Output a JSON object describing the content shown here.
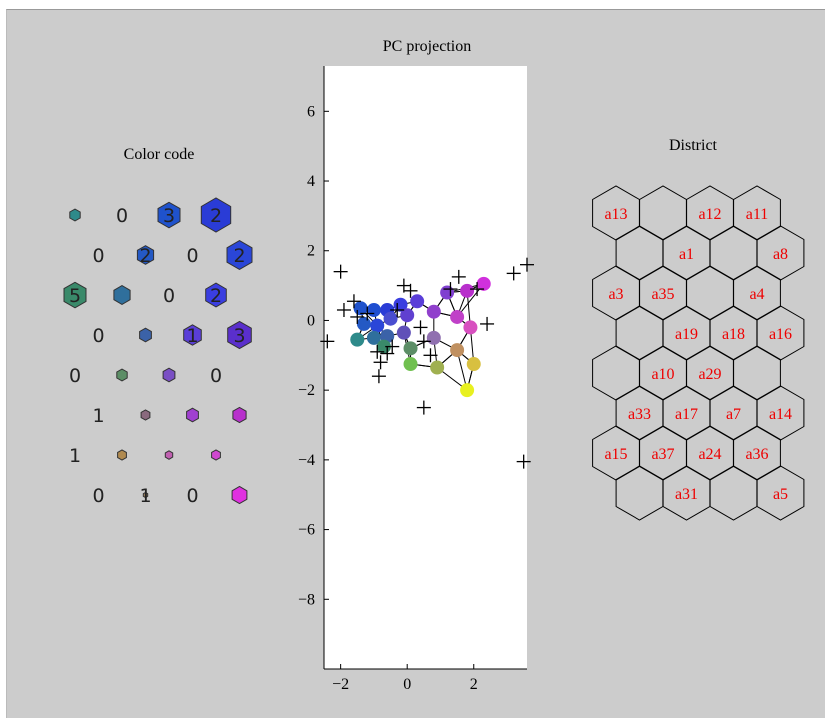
{
  "chart_data": [
    {
      "panel": "color-code",
      "type": "hexagon-grid",
      "title": "Color code",
      "rows": [
        [
          {
            "label": "",
            "color": "#2e8a8a",
            "size": 0.35
          },
          {
            "label": "0",
            "color": null,
            "size": 0
          },
          {
            "label": "3",
            "color": "#1f52cc",
            "size": 0.75
          },
          {
            "label": "2",
            "color": "#2a3cd6",
            "size": 1.0
          }
        ],
        [
          {
            "label": "0",
            "color": null,
            "size": 0
          },
          {
            "label": "2",
            "color": "#2459c4",
            "size": 0.55
          },
          {
            "label": "0",
            "color": null,
            "size": 0
          },
          {
            "label": "2",
            "color": "#2a46d8",
            "size": 0.85
          }
        ],
        [
          {
            "label": "5",
            "color": "#3a8a6a",
            "size": 0.75
          },
          {
            "label": "",
            "color": "#2f6f9c",
            "size": 0.55
          },
          {
            "label": "0",
            "color": null,
            "size": 0
          },
          {
            "label": "2",
            "color": "#3a3ee0",
            "size": 0.7
          }
        ],
        [
          {
            "label": "0",
            "color": null,
            "size": 0
          },
          {
            "label": "",
            "color": "#3b62a8",
            "size": 0.4
          },
          {
            "label": "1",
            "color": "#5a3ed8",
            "size": 0.6
          },
          {
            "label": "3",
            "color": "#5a2fcc",
            "size": 0.8
          }
        ],
        [
          {
            "label": "0",
            "color": null,
            "size": 0
          },
          {
            "label": "",
            "color": "#5c8e66",
            "size": 0.35
          },
          {
            "label": "",
            "color": "#7a4fc4",
            "size": 0.4
          },
          {
            "label": "0",
            "color": null,
            "size": 0
          }
        ],
        [
          {
            "label": "1",
            "color": null,
            "size": 0
          },
          {
            "label": "",
            "color": "#8a6a7e",
            "size": 0.3
          },
          {
            "label": "",
            "color": "#a040d0",
            "size": 0.4
          },
          {
            "label": "",
            "color": "#b830cc",
            "size": 0.45
          }
        ],
        [
          {
            "label": "1",
            "color": null,
            "size": 0
          },
          {
            "label": "",
            "color": "#b08a50",
            "size": 0.3
          },
          {
            "label": "",
            "color": "#c060b0",
            "size": 0.25
          },
          {
            "label": "",
            "color": "#d048d0",
            "size": 0.3
          }
        ],
        [
          {
            "label": "0",
            "color": null,
            "size": 0
          },
          {
            "label": "1",
            "color": "#9a8060",
            "size": 0.15
          },
          {
            "label": "0",
            "color": null,
            "size": 0
          },
          {
            "label": "",
            "color": "#e030e0",
            "size": 0.5
          }
        ]
      ]
    },
    {
      "panel": "pc-projection",
      "type": "scatter",
      "title": "PC projection",
      "xlabel": "",
      "ylabel": "",
      "xlim": [
        -2.5,
        3.6
      ],
      "ylim": [
        -10,
        7.3
      ],
      "xticks": [
        -2,
        0,
        2
      ],
      "xtick_labels": [
        "−2",
        "0",
        "2"
      ],
      "yticks": [
        6,
        4,
        2,
        0,
        -2,
        -4,
        -6,
        -8
      ],
      "ytick_labels": [
        "6",
        "4",
        "2",
        "0",
        "−2",
        "−4",
        "−6",
        "−8"
      ],
      "grid": false,
      "nodes": [
        {
          "x": -1.4,
          "y": 0.35,
          "color": "#1f52cc"
        },
        {
          "x": -1.0,
          "y": 0.3,
          "color": "#1f4fd0"
        },
        {
          "x": -0.6,
          "y": 0.3,
          "color": "#2a3cd6"
        },
        {
          "x": -0.2,
          "y": 0.45,
          "color": "#3a3ee0"
        },
        {
          "x": 0.3,
          "y": 0.55,
          "color": "#5a3ed8"
        },
        {
          "x": 1.2,
          "y": 0.8,
          "color": "#8040d0"
        },
        {
          "x": 1.8,
          "y": 0.85,
          "color": "#b830cc"
        },
        {
          "x": 2.3,
          "y": 1.05,
          "color": "#d030dc"
        },
        {
          "x": -1.3,
          "y": -0.1,
          "color": "#2459c4"
        },
        {
          "x": -0.9,
          "y": -0.15,
          "color": "#2a46d8"
        },
        {
          "x": -0.5,
          "y": 0.05,
          "color": "#4a4ed0"
        },
        {
          "x": 0.0,
          "y": 0.15,
          "color": "#6040d0"
        },
        {
          "x": 0.8,
          "y": 0.25,
          "color": "#9040cc"
        },
        {
          "x": 1.5,
          "y": 0.1,
          "color": "#c040c8"
        },
        {
          "x": 1.9,
          "y": -0.2,
          "color": "#d850c0"
        },
        {
          "x": -1.5,
          "y": -0.55,
          "color": "#2e8a8a"
        },
        {
          "x": -1.0,
          "y": -0.5,
          "color": "#2f6f9c"
        },
        {
          "x": -0.6,
          "y": -0.45,
          "color": "#3b62a8"
        },
        {
          "x": -0.1,
          "y": -0.35,
          "color": "#6050b8"
        },
        {
          "x": 0.8,
          "y": -0.5,
          "color": "#9070b0"
        },
        {
          "x": 1.5,
          "y": -0.85,
          "color": "#c09060"
        },
        {
          "x": -0.7,
          "y": -0.75,
          "color": "#3a8a6a"
        },
        {
          "x": 0.1,
          "y": -0.8,
          "color": "#5c8e66"
        },
        {
          "x": 0.1,
          "y": -1.25,
          "color": "#70c050"
        },
        {
          "x": 0.9,
          "y": -1.35,
          "color": "#a0b050"
        },
        {
          "x": 2.0,
          "y": -1.25,
          "color": "#d8c040"
        },
        {
          "x": 1.8,
          "y": -2.0,
          "color": "#e8f020"
        }
      ],
      "data_points": [
        [
          -2.0,
          1.4
        ],
        [
          -2.4,
          -0.6
        ],
        [
          -1.9,
          0.3
        ],
        [
          -1.6,
          0.55
        ],
        [
          -1.5,
          0.1
        ],
        [
          -1.2,
          0.2
        ],
        [
          -0.9,
          -0.9
        ],
        [
          -0.8,
          -1.2
        ],
        [
          -0.85,
          -1.6
        ],
        [
          -0.6,
          -0.95
        ],
        [
          -0.45,
          -0.75
        ],
        [
          -0.3,
          0.3
        ],
        [
          -0.1,
          1.0
        ],
        [
          0.1,
          0.85
        ],
        [
          0.4,
          -0.2
        ],
        [
          0.5,
          -0.6
        ],
        [
          0.7,
          -1.0
        ],
        [
          1.3,
          0.9
        ],
        [
          1.55,
          1.25
        ],
        [
          2.1,
          0.9
        ],
        [
          2.4,
          -0.1
        ],
        [
          0.5,
          -2.5
        ],
        [
          3.2,
          1.35
        ],
        [
          3.6,
          1.6
        ],
        [
          3.5,
          -4.05
        ]
      ]
    },
    {
      "panel": "district",
      "type": "hexagon-grid",
      "title": "District",
      "rows": [
        [
          "a13",
          "",
          "a12",
          "a11"
        ],
        [
          "",
          "a1",
          "",
          "a8"
        ],
        [
          "a3",
          "a35",
          "",
          "a4"
        ],
        [
          "",
          "a19",
          "a18",
          "a16"
        ],
        [
          "",
          "a10",
          "a29",
          ""
        ],
        [
          "a33",
          "a17",
          "a7",
          "a14"
        ],
        [
          "a15",
          "a37",
          "a24",
          "a36"
        ],
        [
          "",
          "a31",
          "",
          "a5"
        ]
      ]
    }
  ]
}
